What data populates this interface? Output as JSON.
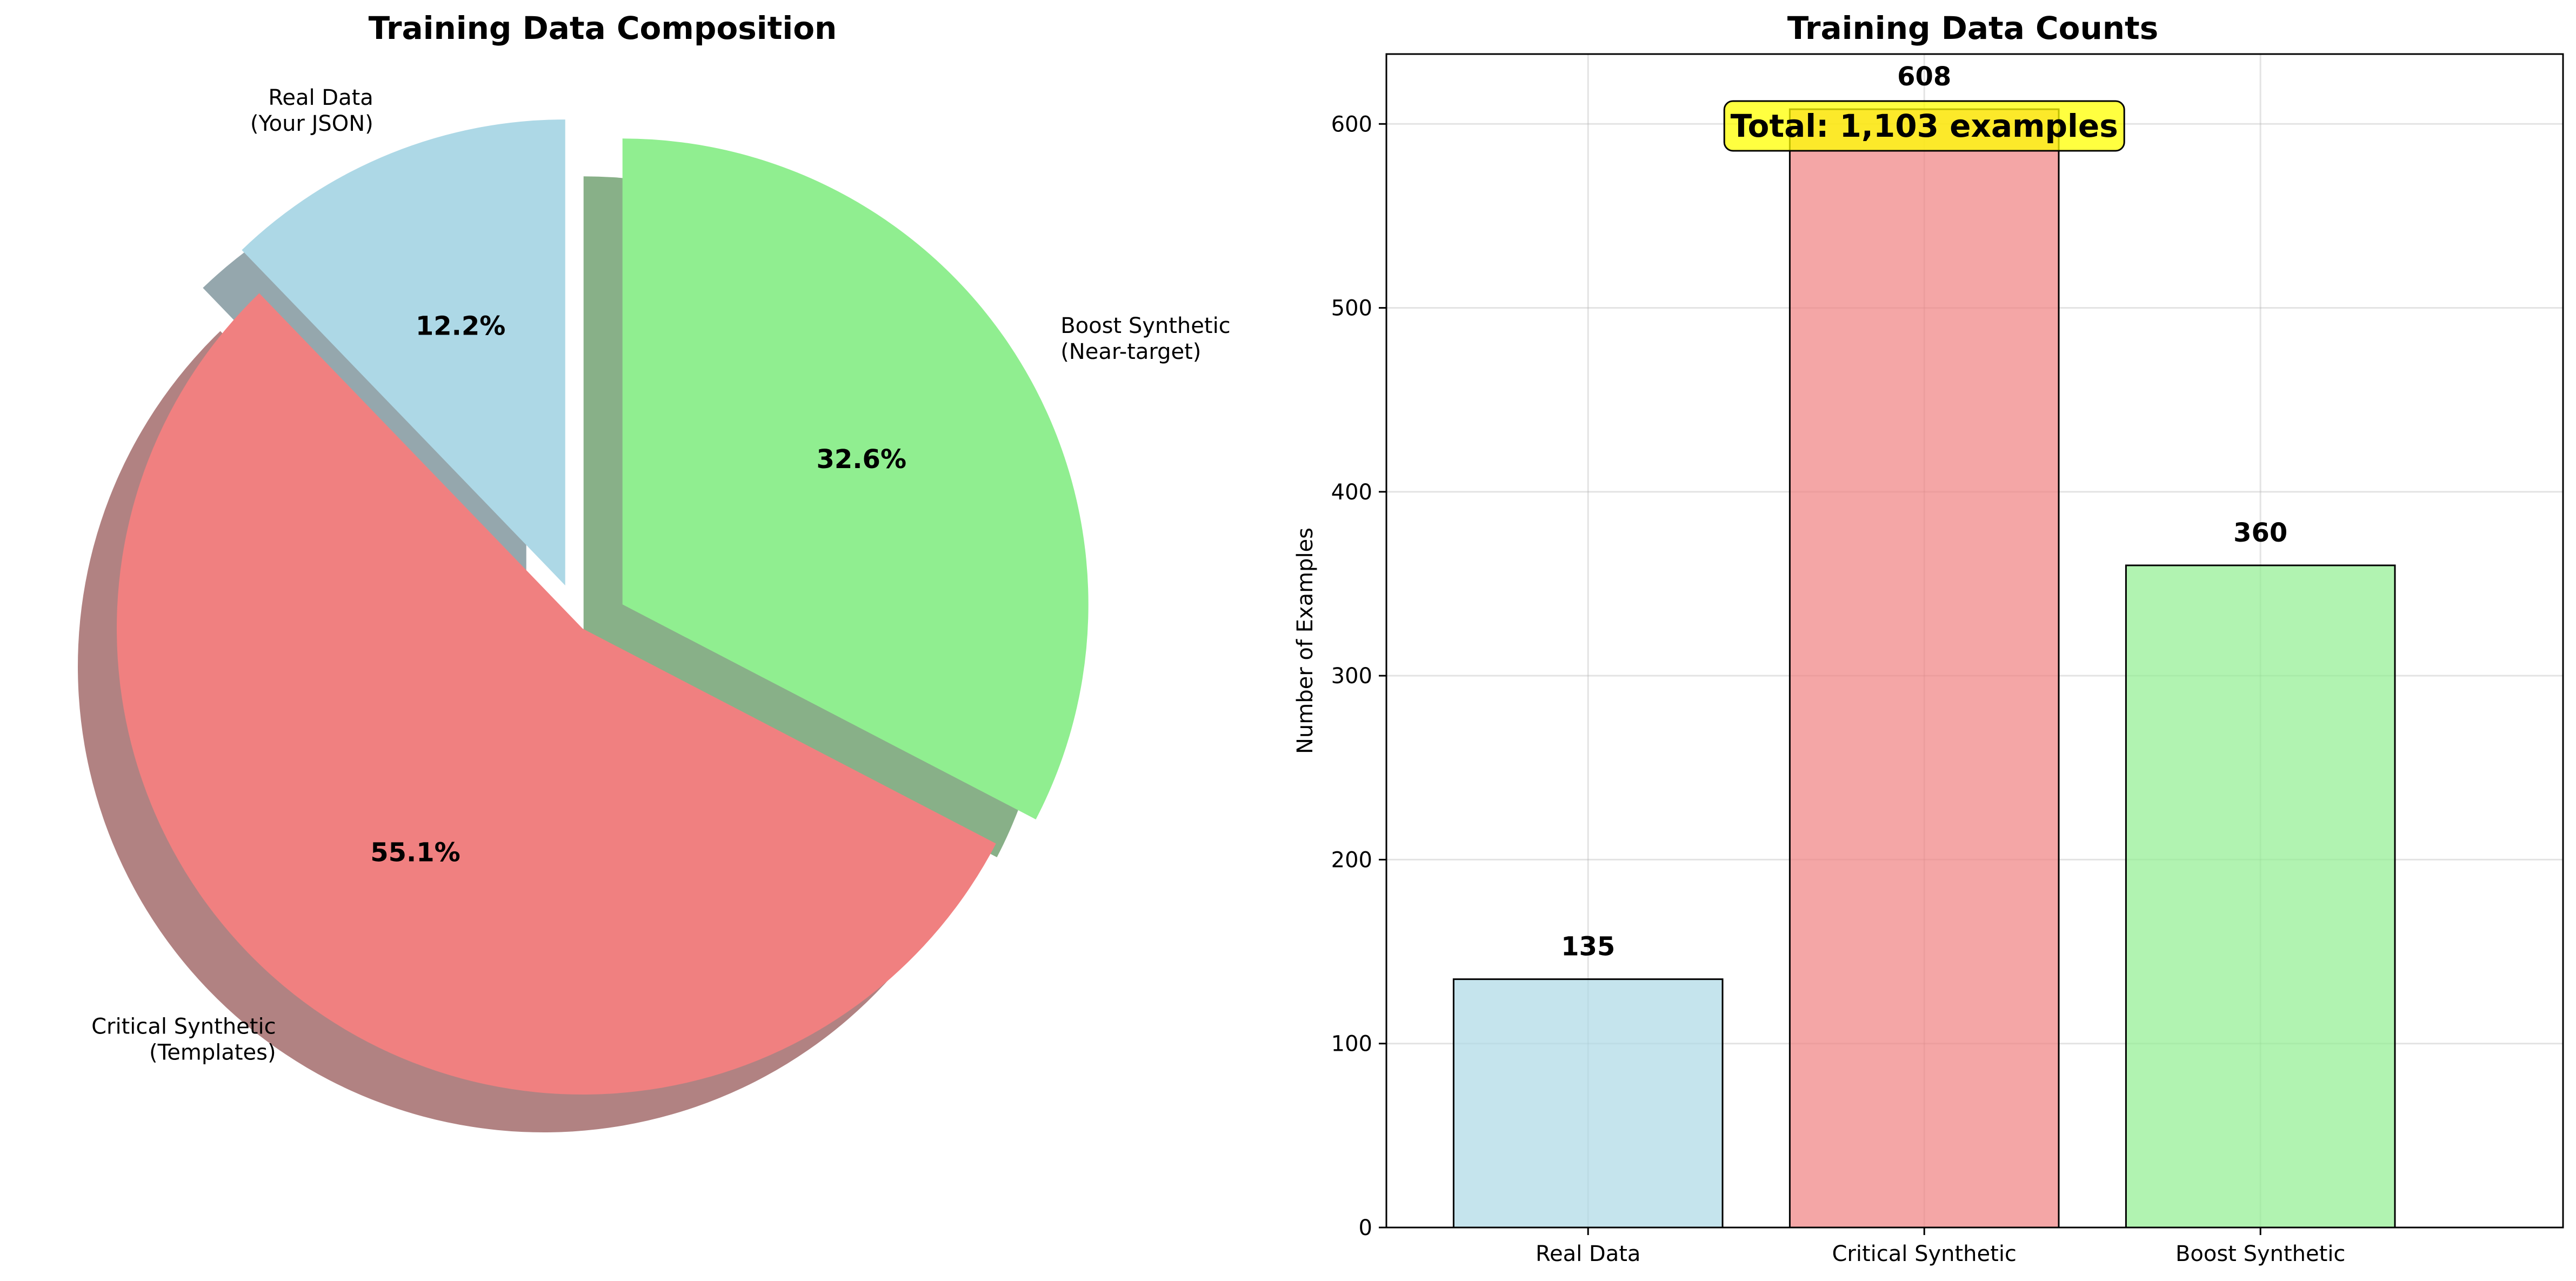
{
  "chart_data": [
    {
      "type": "pie",
      "title": "Training Data Composition",
      "labels": [
        "Real Data\n(Your JSON)",
        "Critical Synthetic\n(Templates)",
        "Boost Synthetic\n(Near-target)"
      ],
      "percent_labels": [
        "12.2%",
        "55.1%",
        "32.6%"
      ],
      "values": [
        12.2,
        55.1,
        32.6
      ],
      "colors": [
        "#add8e6",
        "#f08080",
        "#90ee90"
      ],
      "start_angle_deg": 90,
      "direction": "counterclockwise",
      "exploded": true,
      "shadow": true
    },
    {
      "type": "bar",
      "title": "Training Data Counts",
      "categories": [
        "Real Data",
        "Critical Synthetic",
        "Boost Synthetic"
      ],
      "values": [
        135,
        608,
        360
      ],
      "value_labels": [
        "135",
        "608",
        "360"
      ],
      "colors": [
        "#add8e6",
        "#f08080",
        "#90ee90"
      ],
      "ylabel": "Number of Examples",
      "ylim": [
        0,
        638
      ],
      "yticks": [
        0,
        100,
        200,
        300,
        400,
        500,
        600
      ],
      "grid": true,
      "annotation": "Total: 1,103 examples",
      "annotation_color": "#ffff00"
    }
  ]
}
